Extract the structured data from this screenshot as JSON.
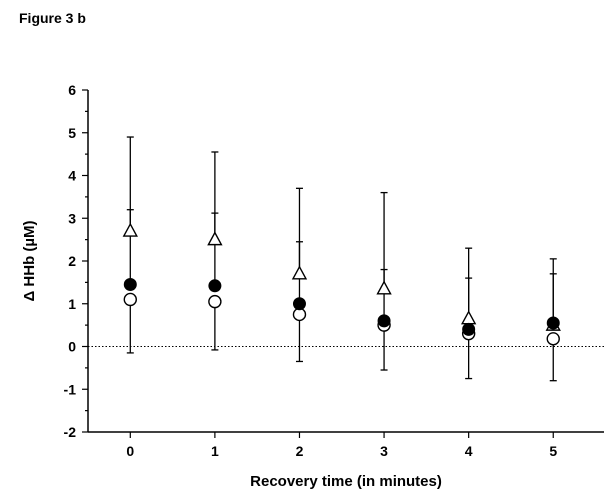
{
  "figure_label": "Figure 3 b",
  "chart_data": {
    "type": "scatter",
    "title": "",
    "xlabel": "Recovery time (in minutes)",
    "ylabel": "Δ HHb (µM)",
    "x": [
      0,
      1,
      2,
      3,
      4,
      5
    ],
    "xlim": [
      -0.5,
      5.6
    ],
    "ylim": [
      -2,
      6
    ],
    "x_ticks": [
      0,
      1,
      2,
      3,
      4,
      5
    ],
    "y_ticks": [
      -2,
      -1,
      0,
      1,
      2,
      3,
      4,
      5,
      6
    ],
    "reference_line": {
      "y": 0,
      "style": "dotted"
    },
    "legend": "none",
    "grid": false,
    "series": [
      {
        "marker": "open-triangle",
        "values": [
          2.7,
          2.5,
          1.7,
          1.35,
          0.65,
          0.5
        ],
        "error_upper": [
          4.9,
          4.55,
          3.7,
          3.6,
          2.3,
          2.05
        ],
        "error_lower": [
          null,
          null,
          null,
          null,
          null,
          null
        ]
      },
      {
        "marker": "filled-circle",
        "values": [
          1.45,
          1.42,
          1.0,
          0.6,
          0.4,
          0.55
        ],
        "error_upper": [
          3.2,
          3.12,
          2.45,
          1.8,
          1.6,
          1.7
        ],
        "error_lower": [
          null,
          null,
          null,
          null,
          null,
          null
        ]
      },
      {
        "marker": "open-circle",
        "values": [
          1.1,
          1.05,
          0.75,
          0.5,
          0.3,
          0.18
        ],
        "error_upper": [
          null,
          null,
          null,
          null,
          null,
          null
        ],
        "error_lower": [
          -0.15,
          -0.08,
          -0.35,
          -0.55,
          -0.75,
          -0.8
        ]
      }
    ]
  }
}
